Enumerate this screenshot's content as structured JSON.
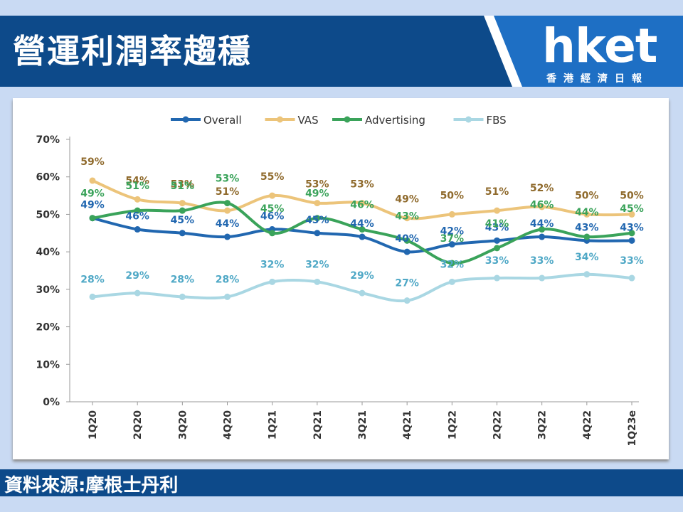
{
  "header": {
    "title": "營運利潤率趨穩"
  },
  "logo": {
    "brand": "hket",
    "subtitle": "香港經濟日報"
  },
  "footer": {
    "source": "資料來源:摩根士丹利"
  },
  "chart_data": {
    "type": "line",
    "categories": [
      "1Q20",
      "2Q20",
      "3Q20",
      "4Q20",
      "1Q21",
      "2Q21",
      "3Q21",
      "4Q21",
      "1Q22",
      "2Q22",
      "3Q22",
      "4Q22",
      "1Q23e"
    ],
    "ylim": [
      0,
      70
    ],
    "yticks": [
      0,
      10,
      20,
      30,
      40,
      50,
      60,
      70
    ],
    "yformat": "percent",
    "grid": false,
    "legend_position": "top",
    "series": [
      {
        "name": "Overall",
        "color": "#2167b0",
        "values": [
          49,
          46,
          45,
          44,
          46,
          45,
          44,
          40,
          42,
          43,
          44,
          43,
          43
        ],
        "labels": [
          "49%",
          "46%",
          "45%",
          "44%",
          "46%",
          "45%",
          "44%",
          "40%",
          "42%",
          "43%",
          "44%",
          "43%",
          "43%"
        ]
      },
      {
        "name": "VAS",
        "color": "#ecc47a",
        "label_color": "#8f6a2c",
        "values": [
          59,
          54,
          53,
          51,
          55,
          53,
          53,
          49,
          50,
          51,
          52,
          50,
          50
        ],
        "labels": [
          "59%",
          "54%",
          "53%",
          "51%",
          "55%",
          "53%",
          "53%",
          "49%",
          "50%",
          "51%",
          "52%",
          "50%",
          "50%"
        ]
      },
      {
        "name": "Advertising",
        "color": "#3aa35a",
        "values": [
          49,
          51,
          51,
          53,
          45,
          49,
          46,
          43,
          37,
          41,
          46,
          44,
          45
        ],
        "labels": [
          "49%",
          "51%",
          "51%",
          "53%",
          "45%",
          "49%",
          "46%",
          "43%",
          "37%",
          "41%",
          "46%",
          "44%",
          "45%"
        ]
      },
      {
        "name": "FBS",
        "color": "#a9d7e3",
        "label_color": "#4fa8c6",
        "values": [
          28,
          29,
          28,
          28,
          32,
          32,
          29,
          27,
          32,
          33,
          33,
          34,
          33
        ],
        "labels": [
          "28%",
          "29%",
          "28%",
          "28%",
          "32%",
          "32%",
          "29%",
          "27%",
          "32%",
          "33%",
          "33%",
          "34%",
          "33%"
        ]
      }
    ]
  }
}
